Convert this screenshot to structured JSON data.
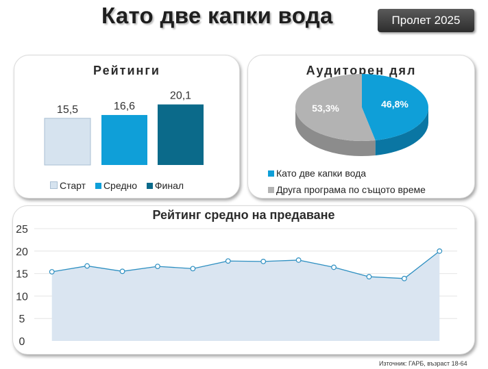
{
  "header": {
    "title": "Като две капки вода",
    "season": "Пролет 2025"
  },
  "ratings_panel": {
    "title": "Рейтинги",
    "chart_data": {
      "type": "bar",
      "categories": [
        "Старт",
        "Средно",
        "Финал"
      ],
      "values": [
        15.5,
        16.6,
        20.1
      ],
      "value_labels": [
        "15,5",
        "16,6",
        "20,1"
      ],
      "colors": [
        "#d6e3ef",
        "#0f9fd8",
        "#0b6a8a"
      ],
      "legend": "bottom"
    }
  },
  "audience_panel": {
    "title": "Аудиторен дял",
    "chart_data": {
      "type": "pie",
      "slices": [
        {
          "name": "Като две капки вода",
          "value": 46.8,
          "label": "46,8%",
          "color": "#0f9fd8"
        },
        {
          "name": "Друга програма по същото време",
          "value": 53.3,
          "label": "53,3%",
          "color": "#b3b3b3"
        }
      ],
      "legend": "bottom"
    }
  },
  "episodes_panel": {
    "title": "Рейтинг средно на предаване",
    "chart_data": {
      "type": "area",
      "values": [
        15.4,
        16.7,
        15.5,
        16.6,
        16.1,
        17.8,
        17.7,
        18.0,
        16.4,
        14.3,
        13.9,
        20.0
      ],
      "ylim": [
        0,
        25
      ],
      "yticks": [
        "0",
        "5",
        "10",
        "15",
        "20",
        "25"
      ],
      "grid": true,
      "line_color": "#2d8fc1",
      "fill_color": "#dae5f1"
    }
  },
  "footer": {
    "source": "Източник: ГАРБ, възраст 18-64"
  }
}
